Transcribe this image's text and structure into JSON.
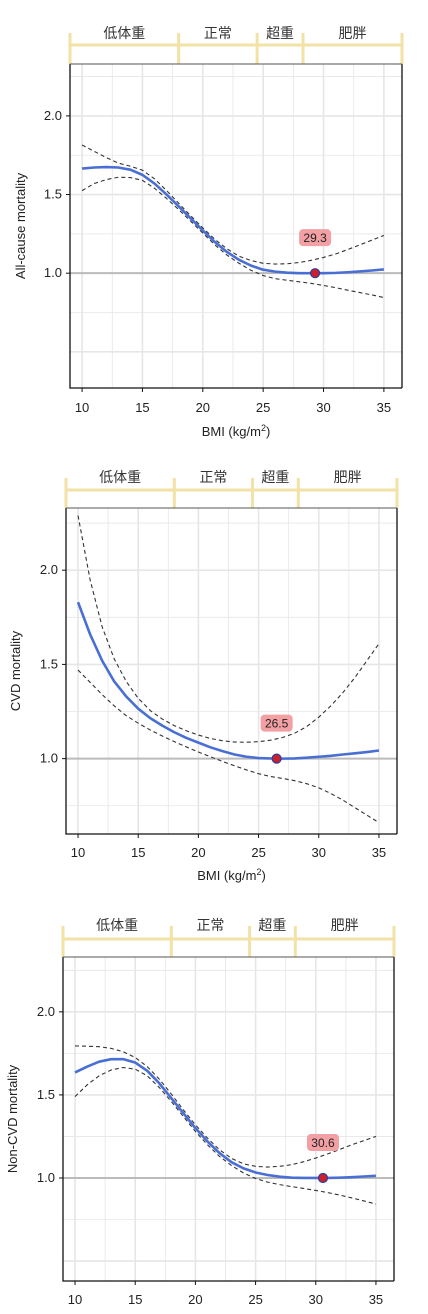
{
  "colors": {
    "category_bracket": "#f2e2a6",
    "main_curve": "#4a6fd4",
    "ci_curve": "#333333",
    "reference_line": "#bbbbbb",
    "grid": "#e6e6e6",
    "min_label_bg": "#f2a0a4",
    "min_marker_fill": "#cc1f2a",
    "min_marker_stroke": "#2a3fa0"
  },
  "chart_data": [
    {
      "type": "line",
      "bmi_categories": [
        {
          "label": "低体重",
          "from": 9,
          "to": 18
        },
        {
          "label": "正常",
          "from": 18,
          "to": 24.5
        },
        {
          "label": "超重",
          "from": 24.5,
          "to": 28.3
        },
        {
          "label": "肥胖",
          "from": 28.3,
          "to": 36.5
        }
      ],
      "xlabel": "BMI (kg/m",
      "xlabel_sup": "2",
      "xlabel_close": ")",
      "ylabel": "All-cause mortality",
      "xlim": [
        9,
        36.5
      ],
      "ylim": [
        0.27,
        2.33
      ],
      "xticks": [
        10,
        15,
        20,
        25,
        30,
        35
      ],
      "yticks": [
        "1.0",
        "1.5",
        "2.0"
      ],
      "ytick_values": [
        1.0,
        1.5,
        2.0
      ],
      "reference_y": 1.0,
      "min_x": 29.3,
      "min_y": 1.0,
      "min_label": "29.3",
      "series": [
        {
          "role": "estimate",
          "x": [
            10,
            11,
            12,
            13,
            14,
            15,
            16,
            17,
            18,
            19,
            20,
            21,
            22,
            23,
            24,
            25,
            26,
            27,
            28,
            29.3,
            30,
            31,
            32,
            33,
            34,
            35
          ],
          "y": [
            1.665,
            1.672,
            1.675,
            1.672,
            1.658,
            1.625,
            1.57,
            1.5,
            1.425,
            1.348,
            1.272,
            1.198,
            1.135,
            1.085,
            1.048,
            1.022,
            1.01,
            1.003,
            1.0,
            1.0,
            1.0,
            1.002,
            1.006,
            1.011,
            1.017,
            1.024
          ]
        },
        {
          "role": "ci_upper",
          "x": [
            10,
            11,
            12,
            13,
            14,
            15,
            16,
            17,
            18,
            19,
            20,
            21,
            22,
            23,
            24,
            25,
            26,
            27,
            28,
            29,
            30,
            31,
            32,
            33,
            34,
            35
          ],
          "y": [
            1.815,
            1.775,
            1.735,
            1.7,
            1.68,
            1.655,
            1.6,
            1.525,
            1.445,
            1.365,
            1.288,
            1.215,
            1.155,
            1.108,
            1.08,
            1.063,
            1.058,
            1.06,
            1.068,
            1.082,
            1.1,
            1.122,
            1.15,
            1.18,
            1.21,
            1.24
          ]
        },
        {
          "role": "ci_lower",
          "x": [
            10,
            11,
            12,
            13,
            14,
            15,
            16,
            17,
            18,
            19,
            20,
            21,
            22,
            23,
            24,
            25,
            26,
            27,
            28,
            29,
            30,
            31,
            32,
            33,
            34,
            35
          ],
          "y": [
            1.525,
            1.57,
            1.595,
            1.61,
            1.608,
            1.59,
            1.54,
            1.475,
            1.405,
            1.33,
            1.255,
            1.18,
            1.115,
            1.063,
            1.018,
            0.985,
            0.965,
            0.955,
            0.945,
            0.935,
            0.922,
            0.908,
            0.892,
            0.877,
            0.862,
            0.845
          ]
        }
      ]
    },
    {
      "type": "line",
      "bmi_categories": [
        {
          "label": "低体重",
          "from": 9,
          "to": 18
        },
        {
          "label": "正常",
          "from": 18,
          "to": 24.5
        },
        {
          "label": "超重",
          "from": 24.5,
          "to": 28.3
        },
        {
          "label": "肥胖",
          "from": 28.3,
          "to": 36.5
        }
      ],
      "xlabel": "BMI (kg/m",
      "xlabel_sup": "2",
      "xlabel_close": ")",
      "ylabel": "CVD mortality",
      "xlim": [
        9,
        36.5
      ],
      "ylim": [
        0.6,
        2.33
      ],
      "xticks": [
        10,
        15,
        20,
        25,
        30,
        35
      ],
      "yticks": [
        "1.0",
        "1.5",
        "2.0"
      ],
      "ytick_values": [
        1.0,
        1.5,
        2.0
      ],
      "reference_y": 1.0,
      "min_x": 26.5,
      "min_y": 1.0,
      "min_label": "26.5",
      "series": [
        {
          "role": "estimate",
          "x": [
            10,
            11,
            12,
            13,
            14,
            15,
            16,
            17,
            18,
            19,
            20,
            21,
            22,
            23,
            24,
            25,
            26.5,
            27,
            28,
            29,
            30,
            31,
            32,
            33,
            34,
            35
          ],
          "y": [
            1.83,
            1.66,
            1.52,
            1.41,
            1.33,
            1.265,
            1.215,
            1.175,
            1.14,
            1.11,
            1.085,
            1.06,
            1.04,
            1.022,
            1.01,
            1.003,
            1.0,
            1.0,
            1.001,
            1.005,
            1.01,
            1.015,
            1.022,
            1.028,
            1.035,
            1.043
          ]
        },
        {
          "role": "ci_upper",
          "x": [
            10,
            11,
            12,
            13,
            14,
            15,
            16,
            17,
            18,
            19,
            20,
            21,
            22,
            23,
            24,
            25,
            26,
            27,
            28,
            29,
            30,
            31,
            32,
            33,
            34,
            35
          ],
          "y": [
            2.29,
            1.95,
            1.7,
            1.53,
            1.41,
            1.32,
            1.255,
            1.21,
            1.175,
            1.148,
            1.125,
            1.107,
            1.095,
            1.088,
            1.087,
            1.09,
            1.098,
            1.112,
            1.135,
            1.17,
            1.22,
            1.28,
            1.35,
            1.43,
            1.52,
            1.61
          ]
        },
        {
          "role": "ci_lower",
          "x": [
            10,
            11,
            12,
            13,
            14,
            15,
            16,
            17,
            18,
            19,
            20,
            21,
            22,
            23,
            24,
            25,
            26,
            27,
            28,
            29,
            30,
            31,
            32,
            33,
            34,
            35
          ],
          "y": [
            1.47,
            1.405,
            1.34,
            1.28,
            1.228,
            1.188,
            1.152,
            1.12,
            1.09,
            1.062,
            1.035,
            1.01,
            0.985,
            0.962,
            0.94,
            0.92,
            0.905,
            0.895,
            0.883,
            0.867,
            0.845,
            0.815,
            0.78,
            0.74,
            0.7,
            0.66
          ]
        }
      ]
    },
    {
      "type": "line",
      "bmi_categories": [
        {
          "label": "低体重",
          "from": 9,
          "to": 18
        },
        {
          "label": "正常",
          "from": 18,
          "to": 24.5
        },
        {
          "label": "超重",
          "from": 24.5,
          "to": 28.3
        },
        {
          "label": "肥胖",
          "from": 28.3,
          "to": 36.5
        }
      ],
      "xlabel": "",
      "xlabel_sup": "",
      "xlabel_close": "",
      "ylabel": "Non-CVD mortality",
      "xlim": [
        9,
        36.5
      ],
      "ylim": [
        0.38,
        2.33
      ],
      "xticks": [
        10,
        15,
        20,
        25,
        30,
        35
      ],
      "yticks": [
        "1.0",
        "1.5",
        "2.0"
      ],
      "ytick_values": [
        1.0,
        1.5,
        2.0
      ],
      "reference_y": 1.0,
      "min_x": 30.6,
      "min_y": 1.0,
      "min_label": "30.6",
      "series": [
        {
          "role": "estimate",
          "x": [
            10,
            11,
            12,
            13,
            14,
            15,
            16,
            17,
            18,
            19,
            20,
            21,
            22,
            23,
            24,
            25,
            26,
            27,
            28,
            29,
            30.6,
            31,
            32,
            33,
            34,
            35
          ],
          "y": [
            1.635,
            1.67,
            1.7,
            1.715,
            1.715,
            1.695,
            1.645,
            1.57,
            1.48,
            1.39,
            1.3,
            1.22,
            1.15,
            1.095,
            1.058,
            1.033,
            1.018,
            1.008,
            1.002,
            1.0,
            1.0,
            1.0,
            1.002,
            1.005,
            1.009,
            1.013
          ]
        },
        {
          "role": "ci_upper",
          "x": [
            10,
            11,
            12,
            13,
            14,
            15,
            16,
            17,
            18,
            19,
            20,
            21,
            22,
            23,
            24,
            25,
            26,
            27,
            28,
            29,
            30,
            31,
            32,
            33,
            34,
            35
          ],
          "y": [
            1.795,
            1.793,
            1.79,
            1.78,
            1.76,
            1.725,
            1.67,
            1.595,
            1.505,
            1.41,
            1.32,
            1.24,
            1.17,
            1.118,
            1.085,
            1.07,
            1.066,
            1.07,
            1.08,
            1.098,
            1.12,
            1.145,
            1.172,
            1.2,
            1.225,
            1.25
          ]
        },
        {
          "role": "ci_lower",
          "x": [
            10,
            11,
            12,
            13,
            14,
            15,
            16,
            17,
            18,
            19,
            20,
            21,
            22,
            23,
            24,
            25,
            26,
            27,
            28,
            29,
            30,
            31,
            32,
            33,
            34,
            35
          ],
          "y": [
            1.49,
            1.56,
            1.615,
            1.65,
            1.665,
            1.655,
            1.615,
            1.545,
            1.46,
            1.37,
            1.28,
            1.2,
            1.13,
            1.075,
            1.03,
            0.997,
            0.975,
            0.96,
            0.948,
            0.937,
            0.925,
            0.912,
            0.897,
            0.88,
            0.862,
            0.843
          ]
        }
      ]
    }
  ]
}
